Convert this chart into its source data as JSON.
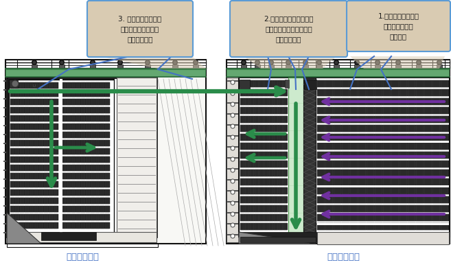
{
  "bg_color": "#ffffff",
  "fig_width": 6.57,
  "fig_height": 3.89,
  "label3_text": "3. 原箱通过输送线、\n提升机输送到三、四\n楼原箱存储区",
  "label2_text": "2.整托通过前端拣选区自\n动或人工拆垛，贴补货标\n签，原箱上线",
  "label1_text": "1.整托通过堆垛机、\n输送线输送到前\n端拣选区",
  "bottom_label_left": "立体仓库三楼",
  "bottom_label_right": "立体仓库四楼",
  "box_bg": "#d9cbb2",
  "box_edge": "#5b9bd5",
  "green_color": "#2a8c4a",
  "purple_color": "#7030a0",
  "blue_line": "#4472c4",
  "rail_color": "#222222",
  "rack_dark": "#1a1a1a",
  "rack_mid": "#555555",
  "rack_light": "#888888",
  "wall_color": "#111111",
  "floor_bg": "#f5f5f0"
}
